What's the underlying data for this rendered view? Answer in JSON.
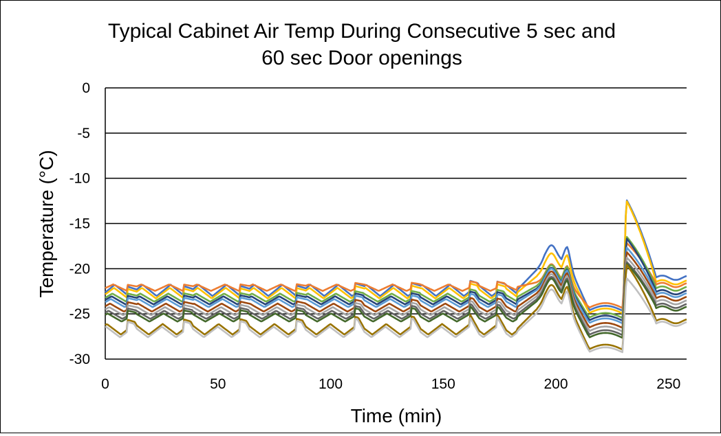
{
  "chart_data": {
    "type": "line",
    "title_lines": [
      "Typical Cabinet Air Temp During Consecutive 5 sec and",
      "60 sec Door openings"
    ],
    "xlabel": "Time (min)",
    "ylabel": "Temperature (°C)",
    "xlim": [
      0,
      258
    ],
    "ylim": [
      -30,
      0
    ],
    "xticks": [
      0,
      50,
      100,
      150,
      200,
      250
    ],
    "yticks": [
      0,
      -5,
      -10,
      -15,
      -20,
      -25,
      -30
    ],
    "grid": "horizontal",
    "legend": "none",
    "door_openings_min": [
      10,
      35,
      60,
      85,
      111,
      136,
      162,
      174,
      184,
      198,
      205,
      230
    ],
    "series": [
      {
        "color": "#4472C4",
        "base": -22.3,
        "amp": 1.4,
        "peak1": -17.4,
        "peak2": -12.3,
        "post": -21.0
      },
      {
        "color": "#FFC000",
        "base": -22.6,
        "amp": 1.3,
        "peak1": -18.3,
        "peak2": -12.4,
        "post": -21.5
      },
      {
        "color": "#ED7D31",
        "base": -22.0,
        "amp": 0.8,
        "peak1": -19.5,
        "peak2": -17.1,
        "post": -21.8
      },
      {
        "color": "#70AD47",
        "base": -23.1,
        "amp": 1.0,
        "peak1": -19.6,
        "peak2": -16.4,
        "post": -22.2
      },
      {
        "color": "#264478",
        "base": -23.4,
        "amp": 1.0,
        "peak1": -19.9,
        "peak2": -16.6,
        "post": -22.6
      },
      {
        "color": "#5B9BD5",
        "base": -23.7,
        "amp": 1.0,
        "peak1": -20.0,
        "peak2": -17.6,
        "post": -22.9
      },
      {
        "color": "#9E480E",
        "base": -24.2,
        "amp": 1.0,
        "peak1": -20.3,
        "peak2": -18.1,
        "post": -23.3
      },
      {
        "color": "#A5A5A5",
        "base": -24.6,
        "amp": 1.0,
        "peak1": -20.6,
        "peak2": -18.7,
        "post": -23.7
      },
      {
        "color": "#636363",
        "base": -25.0,
        "amp": 1.0,
        "peak1": -20.9,
        "peak2": -19.2,
        "post": -24.1
      },
      {
        "color": "#43682B",
        "base": -25.3,
        "amp": 1.0,
        "peak1": -21.1,
        "peak2": -19.4,
        "post": -24.4
      },
      {
        "color": "#997300",
        "base": -26.6,
        "amp": 1.3,
        "peak1": -21.8,
        "peak2": -19.5,
        "post": -25.8
      },
      {
        "color": "#C0C0C0",
        "base": -26.9,
        "amp": 1.3,
        "peak1": -22.3,
        "peak2": -21.0,
        "post": -26.1
      }
    ]
  }
}
